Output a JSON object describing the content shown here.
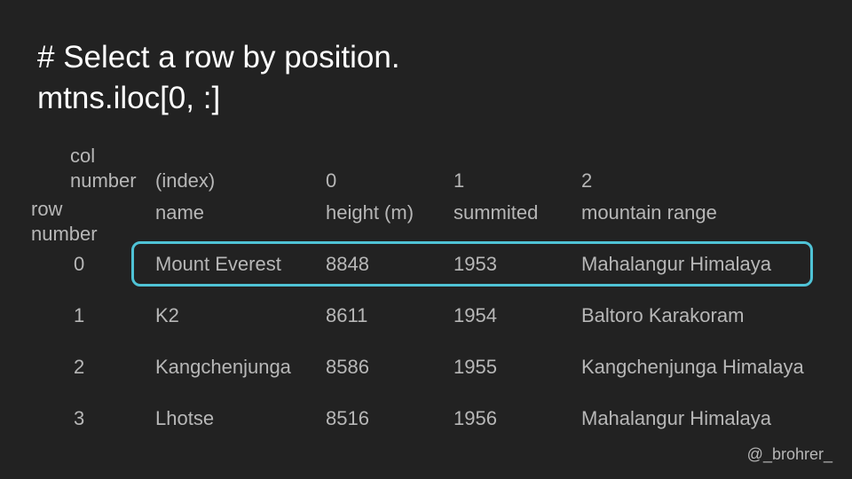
{
  "title": {
    "line1": "# Select a row by position.",
    "line2": "mtns.iloc[0, :]"
  },
  "header": {
    "col_number_label_1": "col",
    "col_number_label_2": "number",
    "row_number_label_1": "row",
    "row_number_label_2": "number",
    "index_label": "(index)",
    "col_numbers": [
      "0",
      "1",
      "2"
    ],
    "index_name": "name",
    "columns": [
      "height (m)",
      "summited",
      "mountain range"
    ]
  },
  "rows": [
    {
      "row_number": "0",
      "name": "Mount Everest",
      "height": "8848",
      "summited": "1953",
      "range": "Mahalangur Himalaya"
    },
    {
      "row_number": "1",
      "name": "K2",
      "height": "8611",
      "summited": "1954",
      "range": "Baltoro Karakoram"
    },
    {
      "row_number": "2",
      "name": "Kangchenjunga",
      "height": "8586",
      "summited": "1955",
      "range": "Kangchenjunga Himalaya"
    },
    {
      "row_number": "3",
      "name": "Lhotse",
      "height": "8516",
      "summited": "1956",
      "range": "Mahalangur Himalaya"
    }
  ],
  "selected_row_number": "0",
  "credit": "@_brohrer_",
  "colors": {
    "background": "#222222",
    "title": "#ffffff",
    "table_text": "#b7b7b7",
    "highlight": "#4fc3d6"
  }
}
